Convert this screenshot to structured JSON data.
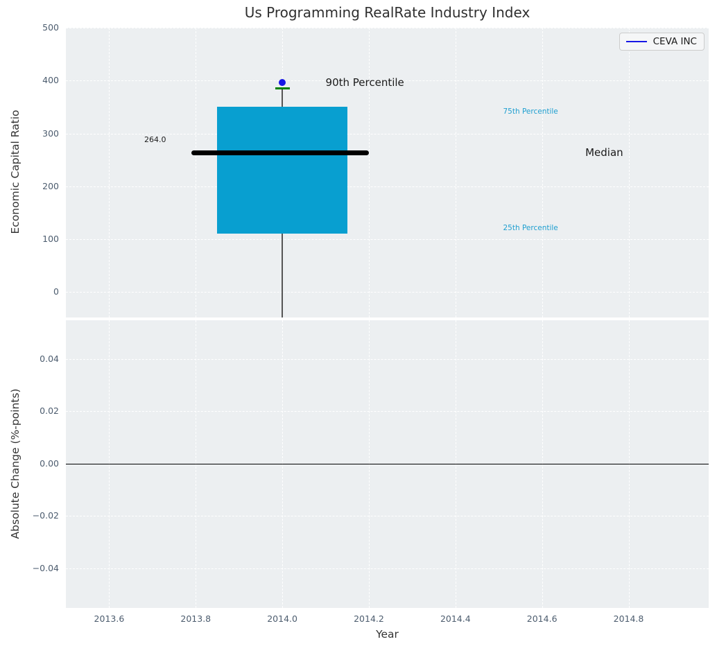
{
  "title": "Us Programming RealRate Industry Index",
  "legend": {
    "label": "CEVA INC",
    "line_color": "#1717e6"
  },
  "colors": {
    "plot_bg": "#eceff1",
    "grid": "#ffffff",
    "tick_label": "#4c5c6e",
    "box_fill": "#089fd0",
    "median_line": "#000000",
    "whisker": "#555555",
    "cap": "#008000",
    "dot": "#1717e6",
    "annotation_cyan": "#1f9fd0",
    "annotation_dark": "#1a1a1a",
    "zero_line": "#000000"
  },
  "chart_data": [
    {
      "type": "boxplot",
      "title": "Us Programming RealRate Industry Index",
      "ylabel": "Economic Capital Ratio",
      "xlabel": "",
      "grid": true,
      "legend_position": "upper right",
      "xlim": [
        2013.5,
        2014.985
      ],
      "ylim": [
        -48,
        500
      ],
      "xticks": {
        "values": [
          2013.6,
          2013.8,
          2014.0,
          2014.2,
          2014.4,
          2014.6,
          2014.8
        ],
        "labels": [
          "2013.6",
          "2013.8",
          "2014.0",
          "2014.2",
          "2014.4",
          "2014.6",
          "2014.8"
        ]
      },
      "yticks": {
        "values": [
          0,
          100,
          200,
          300,
          400,
          500
        ],
        "labels": [
          "0",
          "100",
          "200",
          "300",
          "400",
          "500"
        ]
      },
      "series_label": "CEVA INC",
      "box": {
        "x_center": 2014.0,
        "q1": 110,
        "median": 264,
        "q3": 350,
        "p90": 385,
        "point": 396,
        "box_x_range": [
          2013.85,
          2014.15
        ],
        "median_x_range": [
          2013.79,
          2014.2
        ],
        "cap_x_range": [
          2013.983,
          2014.017
        ],
        "whisker_y_range": [
          -48,
          385
        ]
      },
      "annotations": [
        {
          "text": "264.0",
          "x": 2013.681,
          "y": 288,
          "color": "#1a1a1a",
          "size": 11
        },
        {
          "text": "90th Percentile",
          "x": 2014.1,
          "y": 396,
          "color": "#1a1a1a",
          "size": 15
        },
        {
          "text": "75th Percentile",
          "x": 2014.51,
          "y": 341,
          "color": "#1f9fd0",
          "size": 10.5
        },
        {
          "text": "Median",
          "x": 2014.7,
          "y": 264,
          "color": "#1a1a1a",
          "size": 15
        },
        {
          "text": "25th Percentile",
          "x": 2014.51,
          "y": 120,
          "color": "#1f9fd0",
          "size": 10.5
        }
      ]
    },
    {
      "type": "line",
      "ylabel": "Absolute Change (%-points)",
      "xlabel": "Year",
      "grid": true,
      "xlim": [
        2013.5,
        2014.985
      ],
      "ylim": [
        -0.0552,
        0.0547
      ],
      "xticks": {
        "values": [
          2013.6,
          2013.8,
          2014.0,
          2014.2,
          2014.4,
          2014.6,
          2014.8
        ],
        "labels": [
          "2013.6",
          "2013.8",
          "2014.0",
          "2014.2",
          "2014.4",
          "2014.6",
          "2014.8"
        ]
      },
      "yticks": {
        "values": [
          0.04,
          0.02,
          0.0,
          -0.02,
          -0.04
        ],
        "labels": [
          "0.04",
          "0.02",
          "0.00",
          "−0.02",
          "−0.04"
        ]
      },
      "zero_line": 0.0,
      "series": []
    }
  ]
}
